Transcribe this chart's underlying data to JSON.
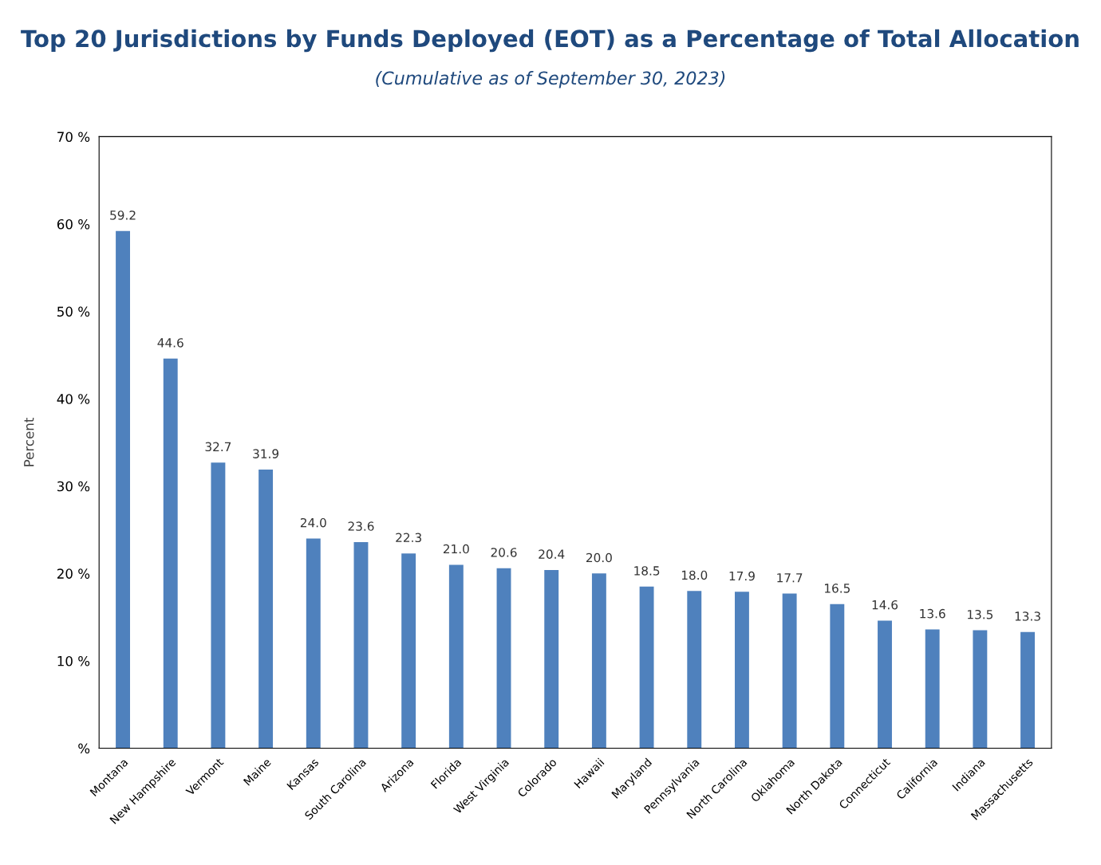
{
  "chart_data": {
    "type": "bar",
    "title": "Top 20 Jurisdictions by Funds Deployed (EOT) as a Percentage of Total Allocation",
    "subtitle": "(Cumulative as of September 30, 2023)",
    "ylabel": "Percent",
    "categories": [
      "Montana",
      "New Hampshire",
      "Vermont",
      "Maine",
      "Kansas",
      "South Carolina",
      "Arizona",
      "Florida",
      "West Virginia",
      "Colorado",
      "Hawaii",
      "Maryland",
      "Pennsylvania",
      "North Carolina",
      "Oklahoma",
      "North Dakota",
      "Connecticut",
      "California",
      "Indiana",
      "Massachusetts"
    ],
    "values": [
      59.2,
      44.6,
      32.7,
      31.9,
      24.0,
      23.6,
      22.3,
      21.0,
      20.6,
      20.4,
      20.0,
      18.5,
      18.0,
      17.9,
      17.7,
      16.5,
      14.6,
      13.6,
      13.5,
      13.3
    ],
    "value_labels": [
      "59.2",
      "44.6",
      "32.7",
      "31.9",
      "24.0",
      "23.6",
      "22.3",
      "21.0",
      "20.6",
      "20.4",
      "20.0",
      "18.5",
      "18.0",
      "17.9",
      "17.7",
      "16.5",
      "14.6",
      "13.6",
      "13.5",
      "13.3"
    ],
    "color": "#4f81bd",
    "grid": false,
    "ylim": [
      0,
      70
    ],
    "yticks": [
      {
        "value": 0,
        "label": "%"
      },
      {
        "value": 10,
        "label": "10 %"
      },
      {
        "value": 20,
        "label": "20 %"
      },
      {
        "value": 30,
        "label": "30 %"
      },
      {
        "value": 40,
        "label": "40 %"
      },
      {
        "value": 50,
        "label": "50 %"
      },
      {
        "value": 60,
        "label": "60 %"
      },
      {
        "value": 70,
        "label": "70 %"
      }
    ]
  }
}
